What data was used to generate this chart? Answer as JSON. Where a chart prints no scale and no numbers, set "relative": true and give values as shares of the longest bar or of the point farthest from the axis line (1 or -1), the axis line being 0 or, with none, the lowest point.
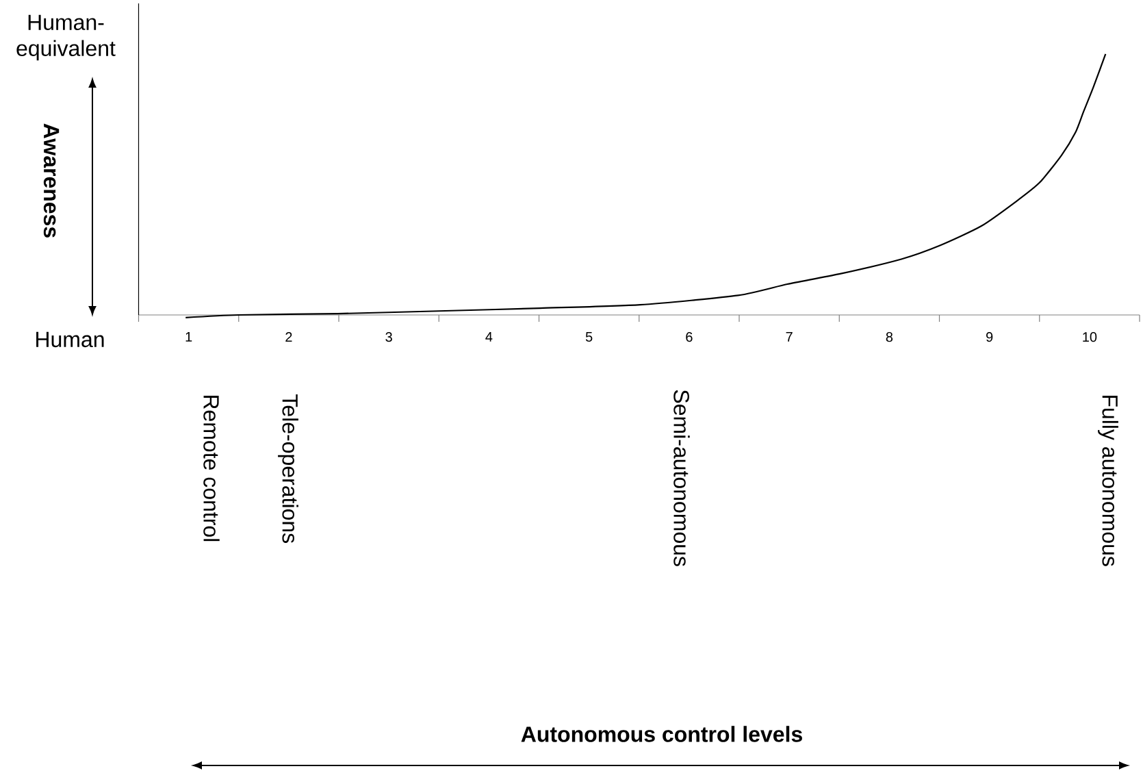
{
  "chart_data": {
    "type": "line",
    "ylabel": "Awareness",
    "relative": true,
    "xlim": [
      0.5,
      10.5
    ],
    "xticks": [
      {
        "value": 0.5,
        "label": null
      },
      1,
      {
        "value": 1.5,
        "label": null
      },
      2,
      {
        "value": 2.5,
        "label": null
      },
      3,
      {
        "value": 3.5,
        "label": null
      },
      4,
      {
        "value": 4.5,
        "label": null
      },
      5,
      {
        "value": 5.5,
        "label": null
      },
      6,
      {
        "value": 6.5,
        "label": null
      },
      7,
      {
        "value": 7.5,
        "label": null
      },
      8,
      {
        "value": 8.5,
        "label": null
      },
      9,
      {
        "value": 9.5,
        "label": null
      },
      10,
      {
        "value": 10.5,
        "label": null
      }
    ],
    "series": [
      {
        "color": "#000000",
        "x": [
          0.97,
          1.5,
          2.49,
          3.5,
          4.51,
          5.51,
          6.49,
          6.98,
          7.5,
          8.12,
          8.51,
          8.92,
          9.26,
          9.5,
          9.72,
          9.86,
          9.94,
          10.04,
          10.16
        ],
        "values": [
          -0.01,
          0,
          0.005,
          0.015,
          0.026,
          0.039,
          0.075,
          0.118,
          0.157,
          0.214,
          0.267,
          0.341,
          0.433,
          0.507,
          0.612,
          0.7,
          0.779,
          0.875,
          1
        ]
      }
    ],
    "annotations": [
      "Human-equivalent",
      "Human",
      "Remote control",
      "Tele-operations",
      "Semi-autonomous",
      "Fully autonomous",
      "Autonomous control levels"
    ]
  }
}
